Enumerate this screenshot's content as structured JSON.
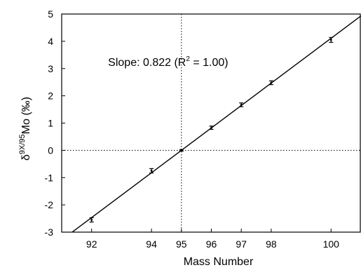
{
  "chart_data": {
    "type": "scatter",
    "xlabel": "Mass Number",
    "ylabel": {
      "delta": "δ",
      "superscript": "9X/95",
      "main": "Mo (‰)"
    },
    "xlim": [
      91.0,
      101.0
    ],
    "ylim": [
      -3,
      5
    ],
    "x_ticks": [
      92,
      94,
      95,
      96,
      97,
      98,
      100
    ],
    "y_ticks": [
      -3,
      -2,
      -1,
      0,
      1,
      2,
      3,
      4,
      5
    ],
    "points": [
      {
        "x": 92,
        "y": -2.55,
        "err": 0.08
      },
      {
        "x": 94,
        "y": -0.75,
        "err": 0.08
      },
      {
        "x": 95,
        "y": 0.0,
        "err": 0.03
      },
      {
        "x": 96,
        "y": 0.83,
        "err": 0.06
      },
      {
        "x": 97,
        "y": 1.67,
        "err": 0.07
      },
      {
        "x": 98,
        "y": 2.48,
        "err": 0.07
      },
      {
        "x": 100,
        "y": 4.05,
        "err": 0.09
      }
    ],
    "fit_line": {
      "slope": 0.822,
      "intercept_at_x": 95,
      "intercept_y": 0
    },
    "reference_lines": {
      "x": 95,
      "y": 0,
      "style": "dotted"
    },
    "annotation": {
      "prefix": "Slope: 0.822 (R",
      "superscript": "2",
      "suffix": " = 1.00)",
      "x": 92.55,
      "y": 3.25
    }
  }
}
